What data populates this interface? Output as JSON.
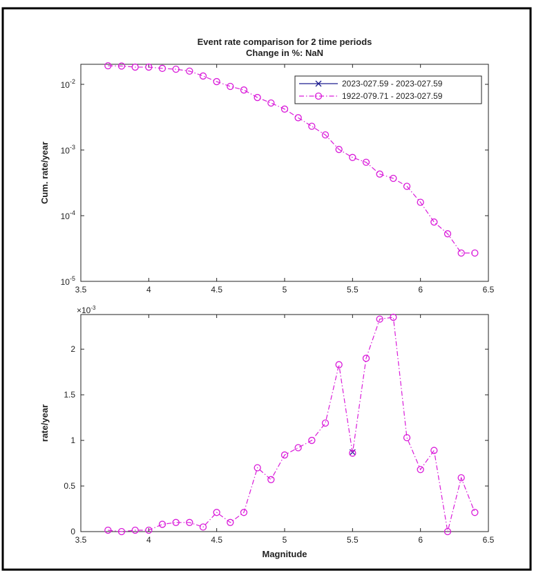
{
  "chart_data": [
    {
      "type": "line",
      "title": "Event rate comparison for 2 time periods",
      "subtitle": "Change in %: NaN",
      "y_label": "Cum. rate/year",
      "yscale": "log",
      "legend": "upper-right",
      "x": [
        3.7,
        3.8,
        3.9,
        4.0,
        4.1,
        4.2,
        4.3,
        4.4,
        4.5,
        4.6,
        4.7,
        4.8,
        4.9,
        5.0,
        5.1,
        5.2,
        5.3,
        5.4,
        5.5,
        5.6,
        5.7,
        5.8,
        5.9,
        6.0,
        6.1,
        6.2,
        6.3,
        6.4
      ],
      "xlim": [
        3.5,
        6.5
      ],
      "xticks": [
        3.5,
        4,
        4.5,
        5,
        5.5,
        6,
        6.5
      ],
      "ylim": [
        1e-05,
        0.0202
      ],
      "yticks": [
        {
          "value": 1e-05,
          "label": "10",
          "exponent": "-5"
        },
        {
          "value": 0.0001,
          "label": "10",
          "exponent": "-4"
        },
        {
          "value": 0.001,
          "label": "10",
          "exponent": "-3"
        },
        {
          "value": 0.01,
          "label": "10",
          "exponent": "-2"
        }
      ],
      "series": [
        {
          "name": "2023-027.59 - 2023-027.59",
          "color": "#1c1c8f",
          "marker": "x",
          "dash": "solid",
          "values": [
            null,
            null,
            null,
            null,
            null,
            null,
            null,
            null,
            null,
            null,
            null,
            null,
            null,
            null,
            null,
            null,
            null,
            null,
            null,
            null,
            null,
            null,
            null,
            null,
            null,
            null,
            null,
            null
          ]
        },
        {
          "name": "1922-079.71 - 2023-027.59",
          "color": "#d91ad9",
          "marker": "circle",
          "dash": "dashdot",
          "values": [
            0.0192,
            0.019,
            0.0183,
            0.0183,
            0.0175,
            0.017,
            0.0159,
            0.0134,
            0.011,
            0.0093,
            0.0082,
            0.0063,
            0.0052,
            0.0042,
            0.0031,
            0.0023,
            0.0017,
            0.00102,
            0.00077,
            0.00065,
            0.00043,
            0.00037,
            0.00028,
            0.00016,
            8e-05,
            5.3e-05,
            2.7e-05,
            2.7e-05
          ]
        }
      ]
    },
    {
      "type": "line",
      "y_label": "rate/year",
      "x_label": "Magnitude",
      "y_multiplier": {
        "label": "×10",
        "exponent": "-3"
      },
      "x": [
        3.7,
        3.8,
        3.9,
        4.0,
        4.1,
        4.2,
        4.3,
        4.4,
        4.5,
        4.6,
        4.7,
        4.8,
        4.9,
        5.0,
        5.1,
        5.2,
        5.3,
        5.4,
        5.5,
        5.6,
        5.7,
        5.8,
        5.9,
        6.0,
        6.1,
        6.2,
        6.3,
        6.4
      ],
      "xlim": [
        3.5,
        6.5
      ],
      "xticks": [
        3.5,
        4,
        4.5,
        5,
        5.5,
        6,
        6.5
      ],
      "ylim": [
        0,
        2.38
      ],
      "yticks": [
        0,
        0.5,
        1,
        1.5,
        2
      ],
      "series": [
        {
          "name": "2023-027.59 - 2023-027.59",
          "color": "#1c1c8f",
          "marker": "x",
          "dash": "solid",
          "values": [
            null,
            null,
            null,
            null,
            null,
            null,
            null,
            null,
            null,
            null,
            null,
            null,
            null,
            null,
            null,
            null,
            null,
            null,
            0.87,
            null,
            null,
            null,
            null,
            null,
            null,
            null,
            null,
            null
          ]
        },
        {
          "name": "1922-079.71 - 2023-027.59",
          "color": "#d91ad9",
          "marker": "circle",
          "dash": "dashdot",
          "values": [
            0.015,
            0,
            0.015,
            0.015,
            0.08,
            0.1,
            0.1,
            0.05,
            0.21,
            0.1,
            0.21,
            0.7,
            0.57,
            0.84,
            0.92,
            1.0,
            1.19,
            1.83,
            0.86,
            1.9,
            2.33,
            2.35,
            1.03,
            0.68,
            0.89,
            0,
            0.59,
            0.21
          ]
        }
      ]
    }
  ]
}
